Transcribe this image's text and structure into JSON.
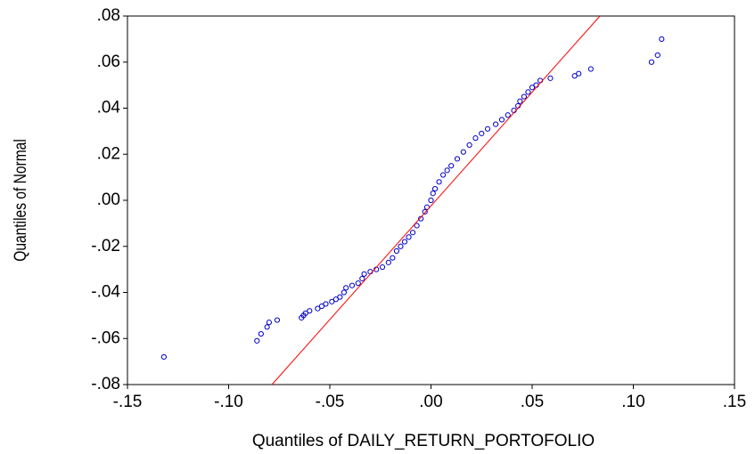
{
  "chart_data": {
    "type": "scatter",
    "xlabel": "Quantiles of DAILY_RETURN_PORTOFOLIO",
    "ylabel": "Quantiles of Normal",
    "xlim": [
      -0.15,
      0.15
    ],
    "ylim": [
      -0.08,
      0.08
    ],
    "xticks": [
      {
        "value": -0.15,
        "label": "-.15"
      },
      {
        "value": -0.1,
        "label": "-.10"
      },
      {
        "value": -0.05,
        "label": "-.05"
      },
      {
        "value": 0,
        "label": ".00"
      },
      {
        "value": 0.05,
        "label": ".05"
      },
      {
        "value": 0.1,
        "label": ".10"
      },
      {
        "value": 0.15,
        "label": ".15"
      }
    ],
    "yticks": [
      {
        "value": -0.08,
        "label": "-.08"
      },
      {
        "value": -0.06,
        "label": "-.06"
      },
      {
        "value": -0.04,
        "label": "-.04"
      },
      {
        "value": -0.02,
        "label": "-.02"
      },
      {
        "value": 0,
        "label": ".00"
      },
      {
        "value": 0.02,
        "label": ".02"
      },
      {
        "value": 0.04,
        "label": ".04"
      },
      {
        "value": 0.06,
        "label": ".06"
      },
      {
        "value": 0.08,
        "label": ".08"
      }
    ],
    "series": [
      {
        "type": "scatter",
        "color": "#0000cc",
        "x": [
          -0.132,
          -0.086,
          -0.084,
          -0.081,
          -0.08,
          -0.076,
          -0.064,
          -0.063,
          -0.062,
          -0.06,
          -0.056,
          -0.054,
          -0.052,
          -0.049,
          -0.047,
          -0.045,
          -0.043,
          -0.042,
          -0.039,
          -0.036,
          -0.034,
          -0.033,
          -0.03,
          -0.027,
          -0.024,
          -0.021,
          -0.019,
          -0.017,
          -0.015,
          -0.013,
          -0.011,
          -0.009,
          -0.007,
          -0.005,
          -0.003,
          -0.002,
          0,
          0.001,
          0.002,
          0.004,
          0.006,
          0.008,
          0.01,
          0.013,
          0.016,
          0.019,
          0.022,
          0.025,
          0.028,
          0.032,
          0.035,
          0.038,
          0.041,
          0.043,
          0.044,
          0.046,
          0.048,
          0.05,
          0.052,
          0.054,
          0.059,
          0.071,
          0.073,
          0.079,
          0.109,
          0.112,
          0.114
        ],
        "values": [
          -0.068,
          -0.061,
          -0.058,
          -0.055,
          -0.053,
          -0.052,
          -0.051,
          -0.05,
          -0.049,
          -0.048,
          -0.047,
          -0.046,
          -0.045,
          -0.044,
          -0.043,
          -0.042,
          -0.04,
          -0.038,
          -0.037,
          -0.036,
          -0.034,
          -0.032,
          -0.031,
          -0.03,
          -0.029,
          -0.027,
          -0.025,
          -0.022,
          -0.02,
          -0.018,
          -0.016,
          -0.014,
          -0.011,
          -0.008,
          -0.005,
          -0.003,
          0,
          0.003,
          0.005,
          0.008,
          0.011,
          0.013,
          0.015,
          0.018,
          0.021,
          0.024,
          0.027,
          0.029,
          0.031,
          0.033,
          0.035,
          0.037,
          0.039,
          0.041,
          0.043,
          0.045,
          0.047,
          0.049,
          0.05,
          0.052,
          0.053,
          0.054,
          0.055,
          0.057,
          0.06,
          0.063,
          0.07
        ]
      },
      {
        "type": "line",
        "color": "#ff0000",
        "x": [
          -0.0786,
          0.0835
        ],
        "values": [
          -0.08,
          0.08
        ]
      }
    ]
  }
}
